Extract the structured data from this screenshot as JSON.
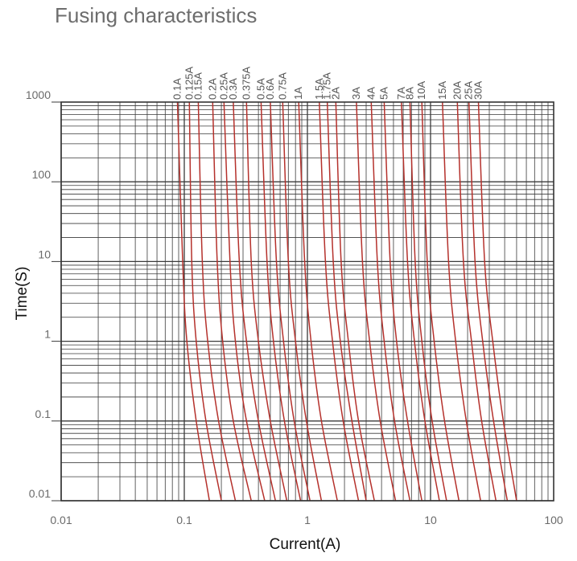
{
  "chart_data": {
    "type": "line",
    "title": "Fusing characteristics",
    "xlabel": "Current(A)",
    "ylabel": "Time(S)",
    "x_scale": "log",
    "y_scale": "log",
    "xlim": [
      0.01,
      100
    ],
    "ylim": [
      0.01,
      1000
    ],
    "x_ticks": [
      "0.01",
      "0.1",
      "1",
      "10",
      "100"
    ],
    "y_ticks": [
      "0.01",
      "0.1",
      "1",
      "10",
      "100",
      "1000"
    ],
    "grid": true,
    "line_color": "#b5312c",
    "series": [
      {
        "name": "0.1A",
        "points": [
          [
            0.088,
            1000
          ],
          [
            0.097,
            10
          ],
          [
            0.105,
            1
          ],
          [
            0.125,
            0.1
          ],
          [
            0.16,
            0.01
          ]
        ]
      },
      {
        "name": "0.125A",
        "points": [
          [
            0.11,
            1000
          ],
          [
            0.115,
            10
          ],
          [
            0.125,
            1
          ],
          [
            0.15,
            0.1
          ],
          [
            0.2,
            0.01
          ]
        ]
      },
      {
        "name": "0.15A",
        "points": [
          [
            0.13,
            1000
          ],
          [
            0.14,
            10
          ],
          [
            0.155,
            1
          ],
          [
            0.19,
            0.1
          ],
          [
            0.26,
            0.01
          ]
        ]
      },
      {
        "name": "0.2A",
        "points": [
          [
            0.17,
            1000
          ],
          [
            0.185,
            10
          ],
          [
            0.205,
            1
          ],
          [
            0.25,
            0.1
          ],
          [
            0.35,
            0.01
          ]
        ]
      },
      {
        "name": "0.25A",
        "points": [
          [
            0.21,
            1000
          ],
          [
            0.235,
            10
          ],
          [
            0.26,
            1
          ],
          [
            0.32,
            0.1
          ],
          [
            0.45,
            0.01
          ]
        ]
      },
      {
        "name": "0.3A",
        "points": [
          [
            0.25,
            1000
          ],
          [
            0.28,
            10
          ],
          [
            0.32,
            1
          ],
          [
            0.4,
            0.1
          ],
          [
            0.55,
            0.01
          ]
        ]
      },
      {
        "name": "0.375A",
        "points": [
          [
            0.32,
            1000
          ],
          [
            0.35,
            10
          ],
          [
            0.4,
            1
          ],
          [
            0.5,
            0.1
          ],
          [
            0.68,
            0.01
          ]
        ]
      },
      {
        "name": "0.5A",
        "points": [
          [
            0.42,
            1000
          ],
          [
            0.47,
            10
          ],
          [
            0.53,
            1
          ],
          [
            0.65,
            0.1
          ],
          [
            0.88,
            0.01
          ]
        ]
      },
      {
        "name": "0.6A",
        "points": [
          [
            0.5,
            1000
          ],
          [
            0.56,
            10
          ],
          [
            0.64,
            1
          ],
          [
            0.78,
            0.1
          ],
          [
            1.05,
            0.01
          ]
        ]
      },
      {
        "name": "0.75A",
        "points": [
          [
            0.63,
            1000
          ],
          [
            0.7,
            10
          ],
          [
            0.8,
            1
          ],
          [
            0.98,
            0.1
          ],
          [
            1.3,
            0.01
          ]
        ]
      },
      {
        "name": "1A",
        "points": [
          [
            0.85,
            1000
          ],
          [
            0.95,
            10
          ],
          [
            1.07,
            1
          ],
          [
            1.3,
            0.1
          ],
          [
            1.75,
            0.01
          ]
        ]
      },
      {
        "name": "1.5A",
        "points": [
          [
            1.25,
            1000
          ],
          [
            1.4,
            10
          ],
          [
            1.6,
            1
          ],
          [
            1.95,
            0.1
          ],
          [
            2.6,
            0.01
          ]
        ]
      },
      {
        "name": "1.75A",
        "points": [
          [
            1.45,
            1000
          ],
          [
            1.62,
            10
          ],
          [
            1.85,
            1
          ],
          [
            2.3,
            0.1
          ],
          [
            3.0,
            0.01
          ]
        ]
      },
      {
        "name": "2A",
        "points": [
          [
            1.7,
            1000
          ],
          [
            1.88,
            10
          ],
          [
            2.15,
            1
          ],
          [
            2.6,
            0.1
          ],
          [
            3.5,
            0.01
          ]
        ]
      },
      {
        "name": "3A",
        "points": [
          [
            2.5,
            1000
          ],
          [
            2.8,
            10
          ],
          [
            3.2,
            1
          ],
          [
            3.9,
            0.1
          ],
          [
            5.2,
            0.01
          ]
        ]
      },
      {
        "name": "4A",
        "points": [
          [
            3.3,
            1000
          ],
          [
            3.7,
            10
          ],
          [
            4.2,
            1
          ],
          [
            5.1,
            0.1
          ],
          [
            6.8,
            0.01
          ]
        ]
      },
      {
        "name": "5A",
        "points": [
          [
            4.2,
            1000
          ],
          [
            4.7,
            10
          ],
          [
            5.3,
            1
          ],
          [
            6.5,
            0.1
          ],
          [
            8.5,
            0.01
          ]
        ]
      },
      {
        "name": "7A",
        "points": [
          [
            5.8,
            1000
          ],
          [
            6.5,
            10
          ],
          [
            7.4,
            1
          ],
          [
            9.0,
            0.1
          ],
          [
            11.8,
            0.01
          ]
        ]
      },
      {
        "name": "8A",
        "points": [
          [
            6.8,
            1000
          ],
          [
            7.5,
            10
          ],
          [
            8.5,
            1
          ],
          [
            10.3,
            0.1
          ],
          [
            13.5,
            0.01
          ]
        ]
      },
      {
        "name": "10A",
        "points": [
          [
            8.5,
            1000
          ],
          [
            9.4,
            10
          ],
          [
            10.7,
            1
          ],
          [
            13,
            0.1
          ],
          [
            17,
            0.01
          ]
        ]
      },
      {
        "name": "15A",
        "points": [
          [
            12.5,
            1000
          ],
          [
            14,
            10
          ],
          [
            16,
            1
          ],
          [
            19.5,
            0.1
          ],
          [
            25.5,
            0.01
          ]
        ]
      },
      {
        "name": "20A",
        "points": [
          [
            16.5,
            1000
          ],
          [
            18.5,
            10
          ],
          [
            21.5,
            1
          ],
          [
            26,
            0.1
          ],
          [
            34,
            0.01
          ]
        ]
      },
      {
        "name": "25A",
        "points": [
          [
            20.5,
            1000
          ],
          [
            23,
            10
          ],
          [
            26.5,
            1
          ],
          [
            32.5,
            0.1
          ],
          [
            42,
            0.01
          ]
        ]
      },
      {
        "name": "30A",
        "points": [
          [
            24.5,
            1000
          ],
          [
            27.5,
            10
          ],
          [
            32,
            1
          ],
          [
            39,
            0.1
          ],
          [
            50,
            0.01
          ]
        ]
      }
    ]
  }
}
